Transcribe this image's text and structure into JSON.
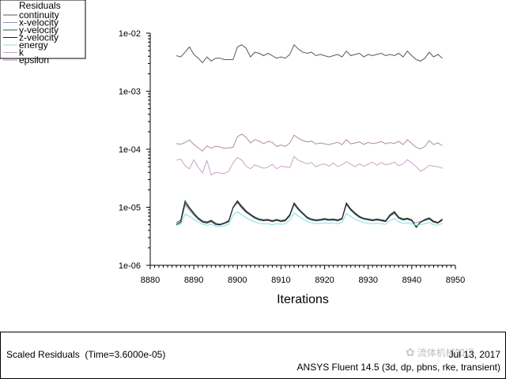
{
  "window": {
    "footer_left": "Scaled Residuals  (Time=3.6000e-05)",
    "footer_date": "Jul 13, 2017",
    "footer_product": "ANSYS Fluent 14.5 (3d, dp, pbns, rke, transient)",
    "watermark_text": "流体机械知识"
  },
  "chart_data": {
    "type": "line",
    "title": "",
    "xlabel": "Iterations",
    "ylabel": "",
    "xlim": [
      8880,
      8950
    ],
    "ylim": [
      1e-06,
      0.01
    ],
    "yscale": "log",
    "grid": false,
    "legend": {
      "title": "Residuals",
      "position": "top-left"
    },
    "x_ticks": [
      8880,
      8890,
      8900,
      8910,
      8920,
      8930,
      8940,
      8950
    ],
    "x_tick_labels": [
      "8880",
      "8890",
      "8900",
      "8910",
      "8920",
      "8930",
      "8940",
      "8950"
    ],
    "y_ticks": [
      1e-06,
      1e-05,
      0.0001,
      0.001,
      0.01
    ],
    "y_tick_labels": [
      "1e-06",
      "1e-05",
      "1e-04",
      "1e-03",
      "1e-02"
    ],
    "x": [
      8886,
      8887,
      8888,
      8889,
      8890,
      8891,
      8892,
      8893,
      8894,
      8895,
      8896,
      8897,
      8898,
      8899,
      8900,
      8901,
      8902,
      8903,
      8904,
      8905,
      8906,
      8907,
      8908,
      8909,
      8910,
      8911,
      8912,
      8913,
      8914,
      8915,
      8916,
      8917,
      8918,
      8919,
      8920,
      8921,
      8922,
      8923,
      8924,
      8925,
      8926,
      8927,
      8928,
      8929,
      8930,
      8931,
      8932,
      8933,
      8934,
      8935,
      8936,
      8937,
      8938,
      8939,
      8940,
      8941,
      8942,
      8943,
      8944,
      8945,
      8946,
      8947
    ],
    "series": [
      {
        "name": "continuity",
        "color": "#5a5a5a",
        "values": [
          0.0041,
          0.0039,
          0.0047,
          0.0058,
          0.0043,
          0.0037,
          0.0031,
          0.0039,
          0.0033,
          0.0037,
          0.0037,
          0.0035,
          0.0035,
          0.0035,
          0.0058,
          0.0063,
          0.0055,
          0.0039,
          0.0047,
          0.0045,
          0.0041,
          0.0045,
          0.0041,
          0.0037,
          0.0039,
          0.0037,
          0.0043,
          0.0063,
          0.0053,
          0.0047,
          0.0045,
          0.0047,
          0.0041,
          0.0043,
          0.0041,
          0.0039,
          0.0041,
          0.0043,
          0.0039,
          0.0049,
          0.0041,
          0.0043,
          0.0045,
          0.0039,
          0.0043,
          0.0041,
          0.0043,
          0.0045,
          0.0041,
          0.0043,
          0.0041,
          0.0045,
          0.0039,
          0.0049,
          0.0041,
          0.0035,
          0.0033,
          0.0037,
          0.0047,
          0.0039,
          0.0043,
          0.0037
        ]
      },
      {
        "name": "x-velocity",
        "color": "#9098b8",
        "values": [
          5.1e-06,
          5.4e-06,
          1.1e-05,
          8.9e-06,
          7.3e-06,
          6.2e-06,
          5.5e-06,
          5.3e-06,
          5.6e-06,
          5e-06,
          4.9e-06,
          5.2e-06,
          5.6e-06,
          9.6e-06,
          1.2e-05,
          9.5e-06,
          8.1e-06,
          7.2e-06,
          6.4e-06,
          6e-06,
          5.8e-06,
          5.9e-06,
          5.6e-06,
          5.9e-06,
          5.6e-06,
          5.8e-06,
          7e-06,
          1.1e-05,
          8.9e-06,
          7.6e-06,
          6.4e-06,
          6e-06,
          5.8e-06,
          5.9e-06,
          6.1e-06,
          5.9e-06,
          6e-06,
          5.8e-06,
          6.2e-06,
          1.1e-05,
          8.8e-06,
          7.5e-06,
          6.6e-06,
          6.2e-06,
          6e-06,
          5.8e-06,
          6e-06,
          5.8e-06,
          5.6e-06,
          7e-06,
          7.8e-06,
          6.4e-06,
          6e-06,
          6.2e-06,
          5.8e-06,
          5.4e-06,
          5.7e-06,
          5.9e-06,
          6.2e-06,
          5.5e-06,
          5.3e-06,
          5.9e-06
        ]
      },
      {
        "name": "y-velocity",
        "color": "#2f5a3c",
        "values": [
          5.4e-06,
          6e-06,
          1.3e-05,
          1e-05,
          8e-06,
          6.6e-06,
          5.8e-06,
          5.6e-06,
          6e-06,
          5.3e-06,
          5.1e-06,
          5.4e-06,
          5.9e-06,
          1e-05,
          1.3e-05,
          1.05e-05,
          8.7e-06,
          7.6e-06,
          6.8e-06,
          6.3e-06,
          6.1e-06,
          6.2e-06,
          5.9e-06,
          6.2e-06,
          5.9e-06,
          6.1e-06,
          7.5e-06,
          1.2e-05,
          9.5e-06,
          8e-06,
          6.8e-06,
          6.3e-06,
          6.1e-06,
          6.2e-06,
          6.4e-06,
          6.2e-06,
          6.3e-06,
          6.1e-06,
          6.5e-06,
          1.2e-05,
          9.4e-06,
          8e-06,
          7e-06,
          6.5e-06,
          6.3e-06,
          6.1e-06,
          6.3e-06,
          6.1e-06,
          5.9e-06,
          7.5e-06,
          8.5e-06,
          6.8e-06,
          6.3e-06,
          6.5e-06,
          6.1e-06,
          4.6e-06,
          5.6e-06,
          6.2e-06,
          6.6e-06,
          5.8e-06,
          5.5e-06,
          6.3e-06
        ]
      },
      {
        "name": "z-velocity",
        "color": "#1e1e1e",
        "values": [
          5e-06,
          5.6e-06,
          1.2e-05,
          9.6e-06,
          7.7e-06,
          6.4e-06,
          5.6e-06,
          5.4e-06,
          5.8e-06,
          5.1e-06,
          5e-06,
          5.3e-06,
          5.7e-06,
          1e-05,
          1.25e-05,
          1e-05,
          8.4e-06,
          7.4e-06,
          6.6e-06,
          6.1e-06,
          5.9e-06,
          6e-06,
          5.7e-06,
          6e-06,
          5.7e-06,
          5.9e-06,
          7.2e-06,
          1.15e-05,
          9.2e-06,
          7.8e-06,
          6.6e-06,
          6.1e-06,
          5.9e-06,
          6e-06,
          6.2e-06,
          6e-06,
          6.1e-06,
          5.9e-06,
          6.3e-06,
          1.15e-05,
          9.1e-06,
          7.7e-06,
          6.8e-06,
          6.3e-06,
          6.1e-06,
          5.9e-06,
          6.1e-06,
          5.9e-06,
          5.7e-06,
          7.2e-06,
          8.1e-06,
          6.6e-06,
          6.1e-06,
          6.3e-06,
          5.9e-06,
          4.5e-06,
          5.5e-06,
          6e-06,
          6.4e-06,
          5.6e-06,
          5.4e-06,
          6.1e-06
        ]
      },
      {
        "name": "energy",
        "color": "#86dfe0",
        "values": [
          4.9e-06,
          5.1e-06,
          7.6e-06,
          7e-06,
          6.2e-06,
          5.6e-06,
          5.1e-06,
          4.9e-06,
          5.1e-06,
          4.7e-06,
          4.6e-06,
          4.8e-06,
          5.1e-06,
          7.3e-06,
          8.3e-06,
          7.4e-06,
          6.6e-06,
          6e-06,
          5.6e-06,
          5.3e-06,
          5.2e-06,
          5.2e-06,
          5e-06,
          5.2e-06,
          5.1e-06,
          5.2e-06,
          6e-06,
          8e-06,
          7e-06,
          6.3e-06,
          5.7e-06,
          5.4e-06,
          5.2e-06,
          5.3e-06,
          5.4e-06,
          5.3e-06,
          5.3e-06,
          5.2e-06,
          5.5e-06,
          7.8e-06,
          6.9e-06,
          6.2e-06,
          5.8e-06,
          5.5e-06,
          5.3e-06,
          5.2e-06,
          5.3e-06,
          5.2e-06,
          5.1e-06,
          5.9e-06,
          6.4e-06,
          5.6e-06,
          5.3e-06,
          5.4e-06,
          5.2e-06,
          4.9e-06,
          5e-06,
          5.2e-06,
          5.5e-06,
          5e-06,
          4.9e-06,
          5.3e-06
        ]
      },
      {
        "name": "k",
        "color": "#c7a4c8",
        "values": [
          6.5e-05,
          6.8e-05,
          5.2e-05,
          4.6e-05,
          6.6e-05,
          4.9e-05,
          3.9e-05,
          6.4e-05,
          3.6e-05,
          4e-05,
          3.9e-05,
          3.8e-05,
          4.2e-05,
          5.8e-05,
          7.2e-05,
          6.5e-05,
          5.1e-05,
          4.6e-05,
          5.4e-05,
          5e-05,
          4.7e-05,
          4.9e-05,
          5.5e-05,
          4.6e-05,
          5.1e-05,
          5e-05,
          4.8e-05,
          7.5e-05,
          6.4e-05,
          6e-05,
          5.6e-05,
          5.9e-05,
          5e-05,
          5.4e-05,
          5.6e-05,
          5.1e-05,
          5.8e-05,
          5e-05,
          5.4e-05,
          6.1e-05,
          5.5e-05,
          5e-05,
          5.6e-05,
          5.1e-05,
          5.5e-05,
          6e-05,
          5.3e-05,
          5.9e-05,
          5.4e-05,
          5.6e-05,
          6e-05,
          5.2e-05,
          5.6e-05,
          6.6e-05,
          5.8e-05,
          5e-05,
          4.2e-05,
          4.6e-05,
          5.3e-05,
          5.1e-05,
          5e-05,
          4.7e-05
        ]
      },
      {
        "name": "epsilon",
        "color": "#b08aa9",
        "values": [
          0.000125,
          0.000122,
          0.00013,
          0.000145,
          0.000121,
          0.000105,
          9.3e-05,
          0.000114,
          0.000104,
          0.000113,
          0.000109,
          0.000104,
          0.000105,
          0.000108,
          0.000164,
          0.000182,
          0.00016,
          0.000128,
          0.000147,
          0.000138,
          0.000124,
          0.000137,
          0.000131,
          0.000112,
          0.000118,
          0.000112,
          0.000128,
          0.000175,
          0.000154,
          0.000141,
          0.000134,
          0.000138,
          0.000123,
          0.000128,
          0.000124,
          0.00012,
          0.000126,
          0.000132,
          0.00012,
          0.000146,
          0.000124,
          0.000128,
          0.000134,
          0.000121,
          0.000131,
          0.000125,
          0.000129,
          0.000136,
          0.000124,
          0.00013,
          0.000126,
          0.000137,
          0.00012,
          0.000146,
          0.000125,
          0.000108,
          0.000101,
          0.000112,
          0.000141,
          0.00012,
          0.000129,
          0.000115
        ]
      }
    ]
  }
}
